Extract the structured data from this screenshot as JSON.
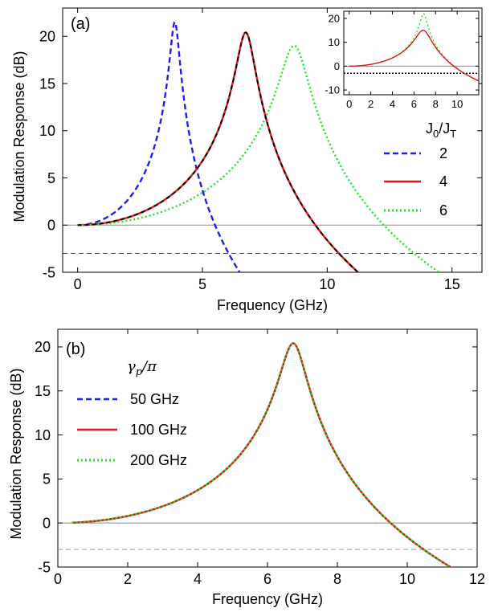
{
  "chart_data": [
    {
      "id": "a",
      "type": "line",
      "panel_label": "(a)",
      "xlabel": "Frequency (GHz)",
      "ylabel": "Modulation Response (dB)",
      "xlim": [
        -0.6,
        16.2
      ],
      "ylim": [
        -5,
        23
      ],
      "xticks": [
        0,
        5,
        10,
        15
      ],
      "yticks": [
        -5,
        0,
        5,
        10,
        15,
        20
      ],
      "xtick_labels": [
        "0",
        "5",
        "10",
        "15"
      ],
      "ytick_labels": [
        "-5",
        "0",
        "5",
        "10",
        "15",
        "20"
      ],
      "reference_lines": [
        {
          "y": 0,
          "style": "solid"
        },
        {
          "y": -3,
          "style": "dashed"
        }
      ],
      "legend": {
        "title": "J0/JT",
        "title_main": "J",
        "title_sub0": "0",
        "title_sep": "/J",
        "title_sub1": "T",
        "placement": "right"
      },
      "series": [
        {
          "name": "2",
          "color": "#1f1fe6",
          "dash": "dashed",
          "fr": 3.9,
          "peak": 21.5
        },
        {
          "name": "4",
          "color": "#e61414",
          "dash": "solid",
          "fr": 6.75,
          "peak": 20.4
        },
        {
          "name": "6",
          "color": "#1ee61e",
          "dash": "dotted",
          "fr": 8.7,
          "peak": 19.0
        },
        {
          "name": "",
          "color": "#000000",
          "dash": "dashed",
          "fr": 6.75,
          "peak": 20.4,
          "overlay": true
        }
      ],
      "inset": {
        "xlim": [
          -0.5,
          12
        ],
        "ylim": [
          -12,
          23
        ],
        "xticks": [
          0,
          2,
          4,
          6,
          8,
          10
        ],
        "yticks": [
          -10,
          0,
          10,
          20
        ],
        "xtick_labels": [
          "0",
          "2",
          "4",
          "6",
          "8",
          "10"
        ],
        "ytick_labels": [
          "-10",
          "0",
          "10",
          "20"
        ],
        "reference_lines": [
          {
            "y": 0,
            "style": "solid"
          },
          {
            "y": -3,
            "style": "dotted"
          }
        ],
        "series": [
          {
            "color": "#1ee61e",
            "dash": "dotted",
            "fr": 6.9,
            "peak": 22.0
          },
          {
            "color": "#e61414",
            "dash": "solid",
            "fr": 6.9,
            "peak": 15.0
          }
        ]
      }
    },
    {
      "id": "b",
      "type": "line",
      "panel_label": "(b)",
      "xlabel": "Frequency (GHz)",
      "ylabel": "Modulation Response (dB)",
      "xlim": [
        0,
        12
      ],
      "ylim": [
        -5,
        22
      ],
      "xticks": [
        0,
        2,
        4,
        6,
        8,
        10,
        12
      ],
      "yticks": [
        -5,
        0,
        5,
        10,
        15,
        20
      ],
      "xtick_labels": [
        "0",
        "2",
        "4",
        "6",
        "8",
        "10",
        "12"
      ],
      "ytick_labels": [
        "-5",
        "0",
        "5",
        "10",
        "15",
        "20"
      ],
      "reference_lines": [
        {
          "y": 0,
          "style": "solid"
        },
        {
          "y": -3,
          "style": "dashed"
        }
      ],
      "legend": {
        "title": "γp/π",
        "title_gamma": "γ",
        "title_sub": "p",
        "title_rest": "/π",
        "placement": "top-left"
      },
      "series": [
        {
          "name": "50 GHz",
          "color": "#1f1fe6",
          "dash": "dashed",
          "fr": 6.75,
          "peak": 20.4
        },
        {
          "name": "100 GHz",
          "color": "#e61414",
          "dash": "solid",
          "fr": 6.75,
          "peak": 20.4
        },
        {
          "name": "200 GHz",
          "color": "#1ee61e",
          "dash": "dotted",
          "fr": 6.75,
          "peak": 20.4
        }
      ]
    }
  ]
}
